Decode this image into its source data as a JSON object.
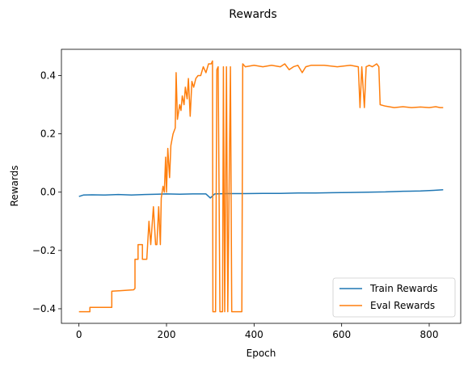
{
  "chart_data": {
    "type": "line",
    "title": "Rewards",
    "xlabel": "Epoch",
    "ylabel": "Rewards",
    "xlim": [
      -40,
      872
    ],
    "ylim": [
      -0.45,
      0.49
    ],
    "xticks": [
      0,
      200,
      400,
      600,
      800
    ],
    "xtick_labels": [
      "0",
      "200",
      "400",
      "600",
      "800"
    ],
    "yticks": [
      -0.4,
      -0.2,
      0.0,
      0.2,
      0.4
    ],
    "ytick_labels": [
      "−0.4",
      "−0.2",
      "0.0",
      "0.2",
      "0.4"
    ],
    "grid": false,
    "legend_position": "lower-right",
    "series": [
      {
        "name": "Train Rewards",
        "color": "#1f77b4",
        "points": [
          [
            0,
            -0.015
          ],
          [
            10,
            -0.01
          ],
          [
            30,
            -0.009
          ],
          [
            60,
            -0.01
          ],
          [
            90,
            -0.008
          ],
          [
            120,
            -0.01
          ],
          [
            150,
            -0.008
          ],
          [
            180,
            -0.007
          ],
          [
            200,
            -0.006
          ],
          [
            230,
            -0.007
          ],
          [
            260,
            -0.006
          ],
          [
            290,
            -0.006
          ],
          [
            300,
            -0.02
          ],
          [
            310,
            -0.006
          ],
          [
            340,
            -0.005
          ],
          [
            380,
            -0.005
          ],
          [
            420,
            -0.004
          ],
          [
            460,
            -0.004
          ],
          [
            500,
            -0.003
          ],
          [
            540,
            -0.003
          ],
          [
            580,
            -0.002
          ],
          [
            620,
            -0.001
          ],
          [
            660,
            0.0
          ],
          [
            700,
            0.001
          ],
          [
            740,
            0.003
          ],
          [
            780,
            0.004
          ],
          [
            810,
            0.006
          ],
          [
            832,
            0.008
          ]
        ]
      },
      {
        "name": "Eval Rewards",
        "color": "#ff7f0e",
        "points": [
          [
            0,
            -0.41
          ],
          [
            25,
            -0.41
          ],
          [
            25,
            -0.395
          ],
          [
            75,
            -0.395
          ],
          [
            75,
            -0.34
          ],
          [
            95,
            -0.338
          ],
          [
            125,
            -0.335
          ],
          [
            128,
            -0.33
          ],
          [
            128,
            -0.23
          ],
          [
            135,
            -0.23
          ],
          [
            135,
            -0.18
          ],
          [
            145,
            -0.18
          ],
          [
            145,
            -0.23
          ],
          [
            155,
            -0.23
          ],
          [
            160,
            -0.1
          ],
          [
            164,
            -0.18
          ],
          [
            170,
            -0.05
          ],
          [
            175,
            -0.18
          ],
          [
            178,
            -0.18
          ],
          [
            182,
            -0.05
          ],
          [
            186,
            -0.18
          ],
          [
            188,
            -0.02
          ],
          [
            192,
            0.02
          ],
          [
            195,
            0.0
          ],
          [
            198,
            0.12
          ],
          [
            200,
            0.0
          ],
          [
            203,
            0.15
          ],
          [
            207,
            0.05
          ],
          [
            210,
            0.16
          ],
          [
            215,
            0.2
          ],
          [
            220,
            0.22
          ],
          [
            222,
            0.41
          ],
          [
            225,
            0.25
          ],
          [
            230,
            0.3
          ],
          [
            233,
            0.28
          ],
          [
            236,
            0.33
          ],
          [
            240,
            0.3
          ],
          [
            243,
            0.36
          ],
          [
            247,
            0.32
          ],
          [
            250,
            0.39
          ],
          [
            254,
            0.26
          ],
          [
            258,
            0.38
          ],
          [
            262,
            0.36
          ],
          [
            267,
            0.39
          ],
          [
            272,
            0.4
          ],
          [
            278,
            0.4
          ],
          [
            284,
            0.43
          ],
          [
            290,
            0.41
          ],
          [
            296,
            0.44
          ],
          [
            302,
            0.44
          ],
          [
            305,
            0.45
          ],
          [
            306,
            -0.41
          ],
          [
            312,
            -0.41
          ],
          [
            315,
            0.42
          ],
          [
            318,
            0.43
          ],
          [
            322,
            -0.41
          ],
          [
            328,
            -0.41
          ],
          [
            330,
            0.43
          ],
          [
            333,
            -0.41
          ],
          [
            337,
            0.43
          ],
          [
            340,
            -0.41
          ],
          [
            346,
            0.43
          ],
          [
            349,
            -0.41
          ],
          [
            372,
            -0.41
          ],
          [
            374,
            0.44
          ],
          [
            380,
            0.43
          ],
          [
            400,
            0.435
          ],
          [
            420,
            0.43
          ],
          [
            440,
            0.435
          ],
          [
            460,
            0.43
          ],
          [
            470,
            0.44
          ],
          [
            480,
            0.42
          ],
          [
            490,
            0.43
          ],
          [
            500,
            0.435
          ],
          [
            510,
            0.41
          ],
          [
            518,
            0.43
          ],
          [
            530,
            0.435
          ],
          [
            560,
            0.435
          ],
          [
            590,
            0.43
          ],
          [
            620,
            0.435
          ],
          [
            638,
            0.43
          ],
          [
            642,
            0.29
          ],
          [
            646,
            0.43
          ],
          [
            652,
            0.29
          ],
          [
            656,
            0.43
          ],
          [
            663,
            0.435
          ],
          [
            670,
            0.43
          ],
          [
            680,
            0.44
          ],
          [
            685,
            0.43
          ],
          [
            688,
            0.3
          ],
          [
            700,
            0.295
          ],
          [
            720,
            0.29
          ],
          [
            740,
            0.293
          ],
          [
            760,
            0.29
          ],
          [
            780,
            0.292
          ],
          [
            800,
            0.29
          ],
          [
            815,
            0.293
          ],
          [
            825,
            0.29
          ],
          [
            832,
            0.29
          ]
        ]
      }
    ]
  }
}
